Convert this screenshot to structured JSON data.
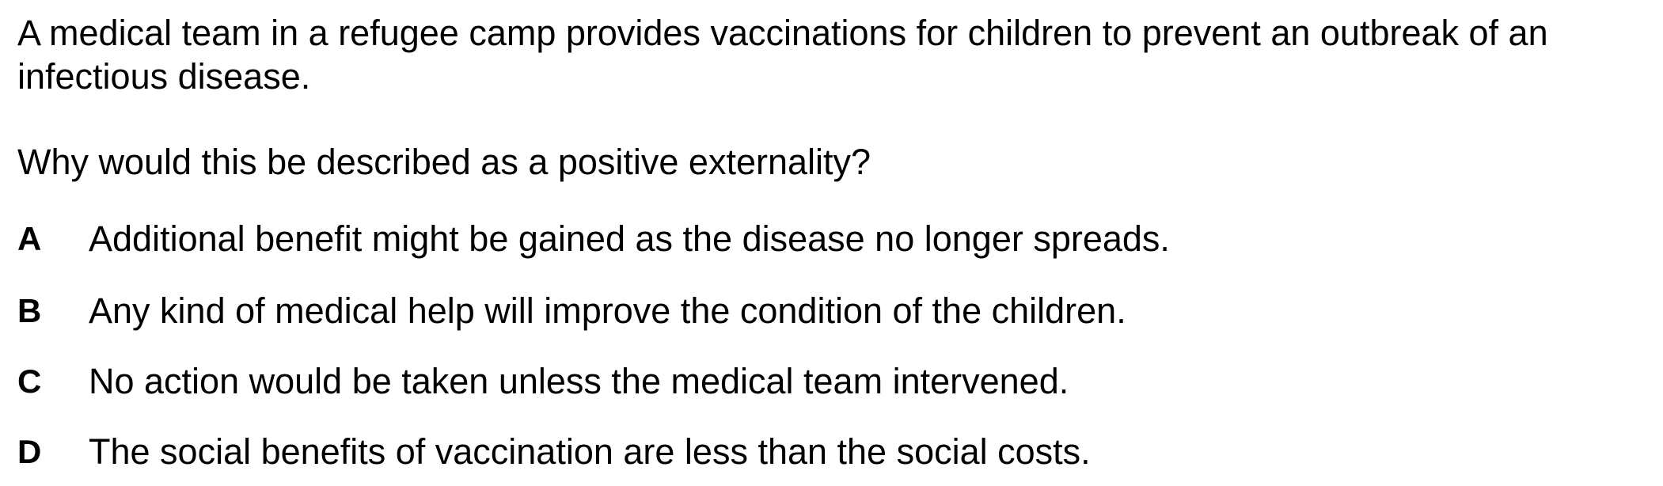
{
  "question": {
    "stem": "A medical team in a refugee camp provides vaccinations for children to prevent an outbreak of an infectious disease.",
    "prompt": "Why would this be described as a positive externality?",
    "options": [
      {
        "letter": "A",
        "text": "Additional benefit might be gained as the disease no longer spreads."
      },
      {
        "letter": "B",
        "text": "Any kind of medical help will improve the condition of the children."
      },
      {
        "letter": "C",
        "text": "No action would be taken unless the medical team intervened."
      },
      {
        "letter": "D",
        "text": "The social benefits of vaccination are less than the social costs."
      }
    ]
  }
}
